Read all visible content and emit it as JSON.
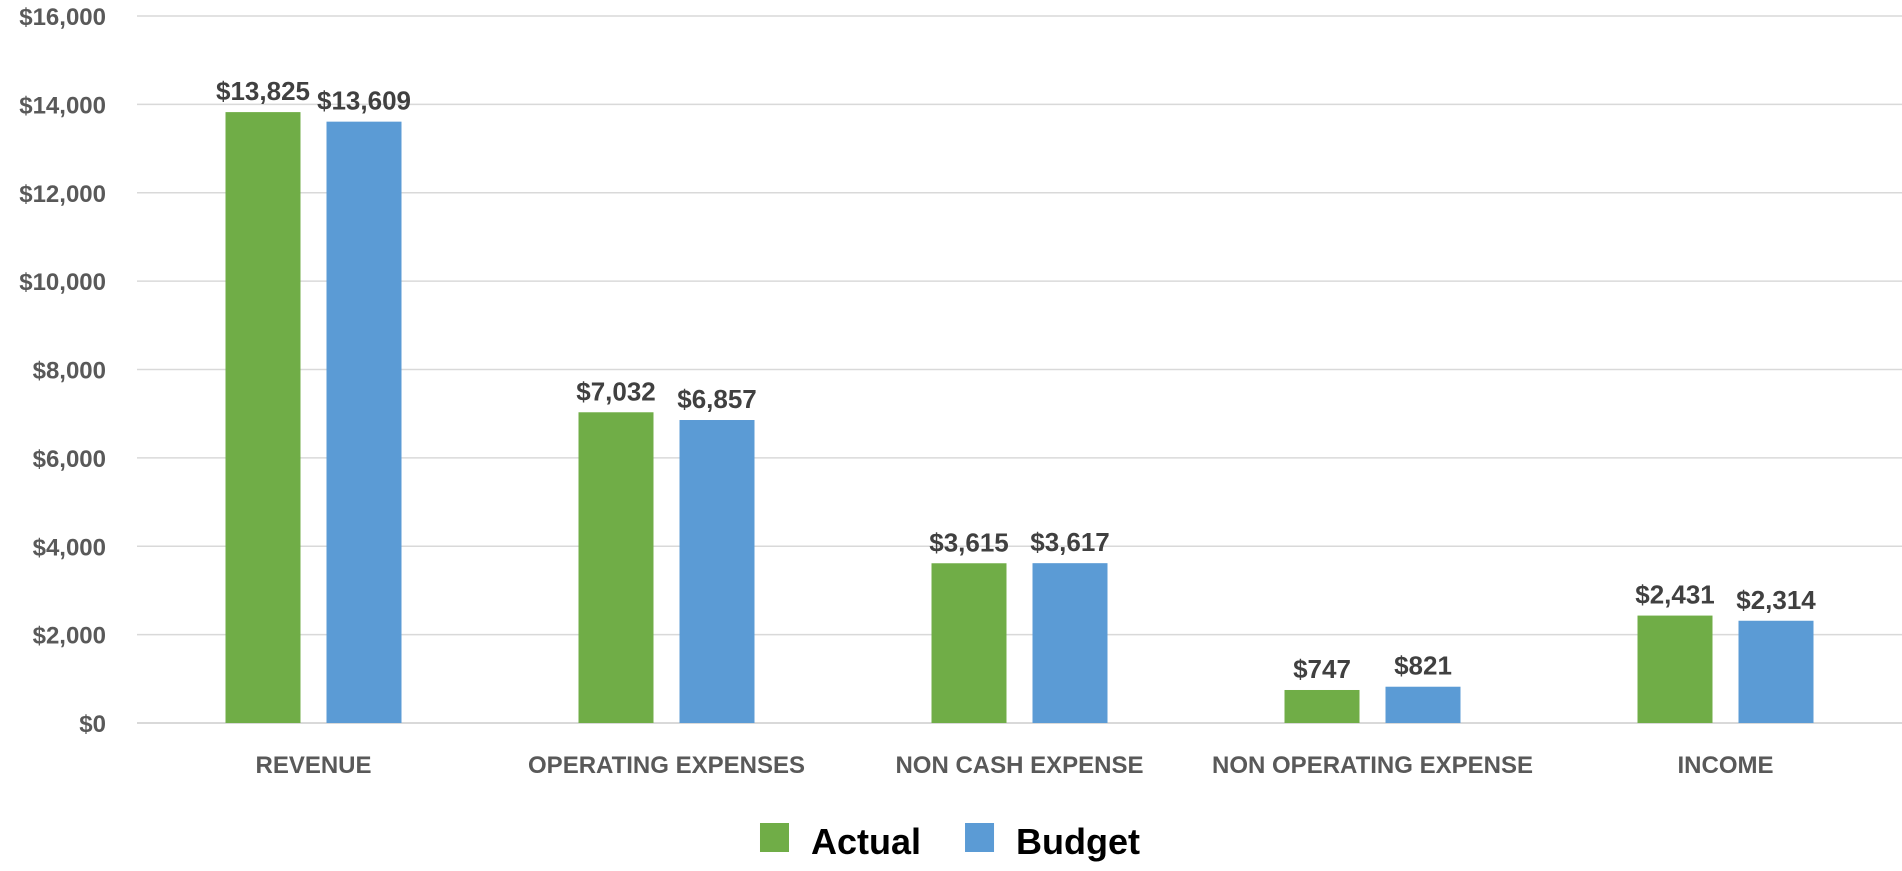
{
  "chart_data": {
    "type": "bar",
    "title": "",
    "categories": [
      "REVENUE",
      "OPERATING EXPENSES",
      "NON CASH EXPENSE",
      "NON OPERATING EXPENSE",
      "INCOME"
    ],
    "series": [
      {
        "name": "Actual",
        "color": "#70ad47",
        "values": [
          13825,
          7032,
          3615,
          747,
          2431
        ],
        "labels": [
          "$13,825",
          "$7,032",
          "$3,615",
          "$747",
          "$2,431"
        ]
      },
      {
        "name": "Budget",
        "color": "#5b9bd5",
        "values": [
          13609,
          6857,
          3617,
          821,
          2314
        ],
        "labels": [
          "$13,609",
          "$6,857",
          "$3,617",
          "$821",
          "$2,314"
        ]
      }
    ],
    "ylim": [
      0,
      16000
    ],
    "y_ticks": [
      0,
      2000,
      4000,
      6000,
      8000,
      10000,
      12000,
      14000,
      16000
    ],
    "y_tick_labels": [
      "$0",
      "$2,000",
      "$4,000",
      "$6,000",
      "$8,000",
      "$10,000",
      "$12,000",
      "$14,000",
      "$16,000"
    ],
    "xlabel": "",
    "ylabel": "",
    "grid": true,
    "gridline_color": "#d9d9d9",
    "legend_position": "bottom-center"
  }
}
